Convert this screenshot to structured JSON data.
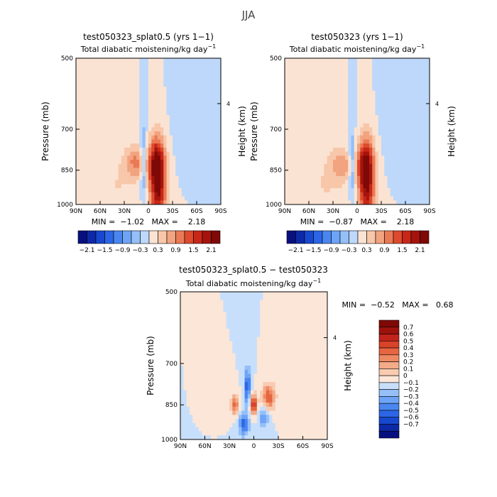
{
  "figure": {
    "title": "JJA"
  },
  "palette_full": [
    "#08107f",
    "#0c2aa8",
    "#1848d0",
    "#2c66e6",
    "#4a86f0",
    "#6ea4f6",
    "#95bff8",
    "#bdd8fa",
    "#fbe3d3",
    "#f8c7aa",
    "#f2a37f",
    "#ea7a55",
    "#dd4a2e",
    "#c82718",
    "#a5140c",
    "#7f0906"
  ],
  "palette_diff": [
    "#08107f",
    "#0c2aa8",
    "#1848d0",
    "#2c66e6",
    "#4a86f0",
    "#6ea4f6",
    "#95bff8",
    "#c7dffb",
    "#fbe6d8",
    "#f9cbb0",
    "#f4ab88",
    "#ee8a63",
    "#e56640",
    "#d8432a",
    "#c2231a",
    "#9d130c",
    "#7f0906"
  ],
  "panel_left": {
    "title": "test050323_splat0.5 (yrs 1−1)",
    "subtitle": "Total diabatic moistening/kg day",
    "subtitle_exp": "−1",
    "stats": "MIN =  −1.02   MAX =    2.18",
    "ylabel": "Pressure (mb)",
    "ylabel_right": "Height (km)"
  },
  "panel_right": {
    "title": "test050323 (yrs 1−1)",
    "subtitle": "Total diabatic moistening/kg day",
    "subtitle_exp": "−1",
    "stats": "MIN =  −0.87   MAX =    2.18",
    "ylabel": "Pressure (mb)",
    "ylabel_right": "Height (km)"
  },
  "panel_diff": {
    "title": "test050323_splat0.5 − test050323",
    "subtitle": "Total diabatic moistening/kg day",
    "subtitle_exp": "−1",
    "stats": "MIN =  −0.52   MAX =   0.68",
    "ylabel": "Pressure (mb)",
    "ylabel_right": "Height (km)"
  },
  "colorbar_top": {
    "labels": [
      "−2.1",
      "−1.5",
      "−0.9",
      "−0.3",
      "0.3",
      "0.9",
      "1.5",
      "2.1"
    ]
  },
  "colorbar_diff": {
    "labels": [
      "0.7",
      "0.6",
      "0.5",
      "0.4",
      "0.3",
      "0.2",
      "0.1",
      "0",
      "−0.1",
      "−0.2",
      "−0.3",
      "−0.4",
      "−0.5",
      "−0.6",
      "−0.7"
    ]
  },
  "chart_data": [
    {
      "type": "heatmap",
      "title": "test050323_splat0.5 (yrs 1−1)",
      "subtitle": "Total diabatic moistening/kg day⁻¹",
      "x_ticks": [
        "90N",
        "60N",
        "30N",
        "0",
        "30S",
        "60S",
        "90S"
      ],
      "x_values": [
        90,
        60,
        30,
        0,
        -30,
        -60,
        -90
      ],
      "y_ticks": [
        "500",
        "700",
        "850",
        "1000"
      ],
      "y_values": [
        500,
        700,
        850,
        1000
      ],
      "y_right_ticks": [
        "4"
      ],
      "ylabel": "Pressure (mb)",
      "ylabel_right": "Height (km)",
      "min": -1.02,
      "max": 2.18,
      "contour_levels": [
        -2.1,
        -1.8,
        -1.5,
        -1.2,
        -0.9,
        -0.6,
        -0.3,
        0,
        0.3,
        0.6,
        0.9,
        1.2,
        1.5,
        1.8,
        2.1
      ],
      "features": [
        {
          "lat": -12,
          "p": 930,
          "value": 2.0,
          "lat_w": 10,
          "p_w": 160
        },
        {
          "lat": -10,
          "p": 820,
          "value": 1.5,
          "lat_w": 10,
          "p_w": 90
        },
        {
          "lat": 6,
          "p": 830,
          "value": -0.9,
          "lat_w": 4,
          "p_w": 140
        },
        {
          "lat": 15,
          "p": 820,
          "value": 0.9,
          "lat_w": 14,
          "p_w": 60
        },
        {
          "lat": 40,
          "p": 920,
          "value": 0.3,
          "lat_w": 35,
          "p_w": 160
        },
        {
          "lat": -55,
          "p": 680,
          "value": -0.3,
          "lat_w": 20,
          "p_w": 120
        }
      ]
    },
    {
      "type": "heatmap",
      "title": "test050323 (yrs 1−1)",
      "subtitle": "Total diabatic moistening/kg day⁻¹",
      "x_ticks": [
        "90N",
        "60N",
        "30N",
        "0",
        "30S",
        "60S",
        "90S"
      ],
      "x_values": [
        90,
        60,
        30,
        0,
        -30,
        -60,
        -90
      ],
      "y_ticks": [
        "500",
        "700",
        "850",
        "1000"
      ],
      "y_values": [
        500,
        700,
        850,
        1000
      ],
      "y_right_ticks": [
        "4"
      ],
      "ylabel": "Pressure (mb)",
      "ylabel_right": "Height (km)",
      "min": -0.87,
      "max": 2.18,
      "contour_levels": [
        -2.1,
        -1.8,
        -1.5,
        -1.2,
        -0.9,
        -0.6,
        -0.3,
        0,
        0.3,
        0.6,
        0.9,
        1.2,
        1.5,
        1.8,
        2.1
      ],
      "features": [
        {
          "lat": -12,
          "p": 930,
          "value": 1.9,
          "lat_w": 10,
          "p_w": 160
        },
        {
          "lat": -10,
          "p": 820,
          "value": 1.4,
          "lat_w": 10,
          "p_w": 90
        },
        {
          "lat": 6,
          "p": 840,
          "value": -0.8,
          "lat_w": 4,
          "p_w": 140
        },
        {
          "lat": 20,
          "p": 830,
          "value": 0.7,
          "lat_w": 14,
          "p_w": 60
        },
        {
          "lat": 40,
          "p": 920,
          "value": 0.3,
          "lat_w": 35,
          "p_w": 160
        },
        {
          "lat": -55,
          "p": 680,
          "value": -0.3,
          "lat_w": 20,
          "p_w": 120
        }
      ]
    },
    {
      "type": "heatmap",
      "title": "test050323_splat0.5 − test050323",
      "subtitle": "Total diabatic moistening/kg day⁻¹",
      "x_ticks": [
        "90N",
        "60N",
        "30N",
        "0",
        "30S",
        "60S",
        "90S"
      ],
      "x_values": [
        90,
        60,
        30,
        0,
        -30,
        -60,
        -90
      ],
      "y_ticks": [
        "500",
        "700",
        "850",
        "1000"
      ],
      "y_values": [
        500,
        700,
        850,
        1000
      ],
      "y_right_ticks": [
        "4"
      ],
      "ylabel": "Pressure (mb)",
      "ylabel_right": "Height (km)",
      "min": -0.52,
      "max": 0.68,
      "contour_levels": [
        -0.7,
        -0.6,
        -0.5,
        -0.4,
        -0.3,
        -0.2,
        -0.1,
        0,
        0.1,
        0.2,
        0.3,
        0.4,
        0.5,
        0.6,
        0.7
      ],
      "features": [
        {
          "lat": 0,
          "p": 850,
          "value": 0.65,
          "lat_w": 4,
          "p_w": 40
        },
        {
          "lat": 23,
          "p": 850,
          "value": 0.45,
          "lat_w": 5,
          "p_w": 40
        },
        {
          "lat": -18,
          "p": 820,
          "value": 0.5,
          "lat_w": 8,
          "p_w": 50
        },
        {
          "lat": 8,
          "p": 780,
          "value": -0.5,
          "lat_w": 4,
          "p_w": 60
        },
        {
          "lat": 12,
          "p": 930,
          "value": -0.45,
          "lat_w": 6,
          "p_w": 50
        },
        {
          "lat": -12,
          "p": 900,
          "value": -0.3,
          "lat_w": 6,
          "p_w": 50
        }
      ]
    }
  ]
}
